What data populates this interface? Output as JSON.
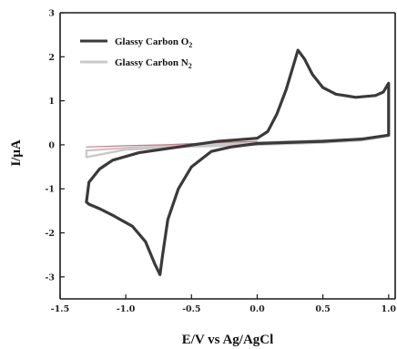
{
  "chart_data": {
    "type": "line",
    "xlabel": "E/V vs Ag/AgCl",
    "ylabel": "I/μA",
    "xlim": [
      -1.5,
      1.05
    ],
    "ylim": [
      -3.5,
      3.0
    ],
    "xticks": [
      "-1.5",
      "-1.0",
      "-0.5",
      "0.0",
      "0.5",
      "1.0"
    ],
    "xtick_values": [
      -1.5,
      -1.0,
      -0.5,
      0.0,
      0.5,
      1.0
    ],
    "yticks": [
      "-3",
      "-2",
      "-1",
      "0",
      "1",
      "2",
      "3"
    ],
    "ytick_values": [
      -3,
      -2,
      -1,
      0,
      1,
      2,
      3
    ],
    "grid": false,
    "legend_position": "top-left",
    "series": [
      {
        "name": "Glassy Carbon O",
        "name_subscript": "2",
        "color": "#3a3a3a",
        "points": [
          [
            1.0,
            0.22
          ],
          [
            0.8,
            0.13
          ],
          [
            0.5,
            0.08
          ],
          [
            0.2,
            0.05
          ],
          [
            0.0,
            0.03
          ],
          [
            -0.2,
            -0.05
          ],
          [
            -0.35,
            -0.15
          ],
          [
            -0.5,
            -0.5
          ],
          [
            -0.6,
            -1.0
          ],
          [
            -0.68,
            -1.7
          ],
          [
            -0.72,
            -2.5
          ],
          [
            -0.74,
            -2.95
          ],
          [
            -0.78,
            -2.7
          ],
          [
            -0.85,
            -2.2
          ],
          [
            -0.95,
            -1.85
          ],
          [
            -1.1,
            -1.6
          ],
          [
            -1.2,
            -1.45
          ],
          [
            -1.28,
            -1.35
          ],
          [
            -1.3,
            -1.3
          ],
          [
            -1.28,
            -0.85
          ],
          [
            -1.2,
            -0.55
          ],
          [
            -1.1,
            -0.35
          ],
          [
            -0.9,
            -0.18
          ],
          [
            -0.6,
            -0.05
          ],
          [
            -0.3,
            0.08
          ],
          [
            0.0,
            0.15
          ],
          [
            0.08,
            0.3
          ],
          [
            0.15,
            0.7
          ],
          [
            0.22,
            1.25
          ],
          [
            0.28,
            1.85
          ],
          [
            0.31,
            2.15
          ],
          [
            0.36,
            1.95
          ],
          [
            0.42,
            1.6
          ],
          [
            0.5,
            1.3
          ],
          [
            0.6,
            1.15
          ],
          [
            0.75,
            1.08
          ],
          [
            0.9,
            1.12
          ],
          [
            0.96,
            1.2
          ],
          [
            0.99,
            1.35
          ],
          [
            1.0,
            1.4
          ],
          [
            1.0,
            0.22
          ]
        ]
      },
      {
        "name": "Glassy Carbon N",
        "name_subscript": "2",
        "color": "#c9c9c9",
        "points": [
          [
            -1.3,
            -0.13
          ],
          [
            -1.0,
            -0.07
          ],
          [
            -0.5,
            0.0
          ],
          [
            0.0,
            0.05
          ],
          [
            0.5,
            0.1
          ],
          [
            0.8,
            0.14
          ],
          [
            1.0,
            0.2
          ],
          [
            0.8,
            0.1
          ],
          [
            0.5,
            0.05
          ],
          [
            0.0,
            0.0
          ],
          [
            -0.5,
            -0.04
          ],
          [
            -1.0,
            -0.11
          ],
          [
            -1.3,
            -0.28
          ],
          [
            -1.3,
            -0.13
          ]
        ]
      },
      {
        "name": "",
        "color": "#c97b86",
        "points": [
          [
            -1.3,
            -0.05
          ],
          [
            -1.0,
            -0.02
          ],
          [
            -0.7,
            0.0
          ],
          [
            -0.4,
            0.04
          ],
          [
            -0.1,
            0.07
          ],
          [
            0.0,
            0.08
          ]
        ]
      }
    ]
  }
}
